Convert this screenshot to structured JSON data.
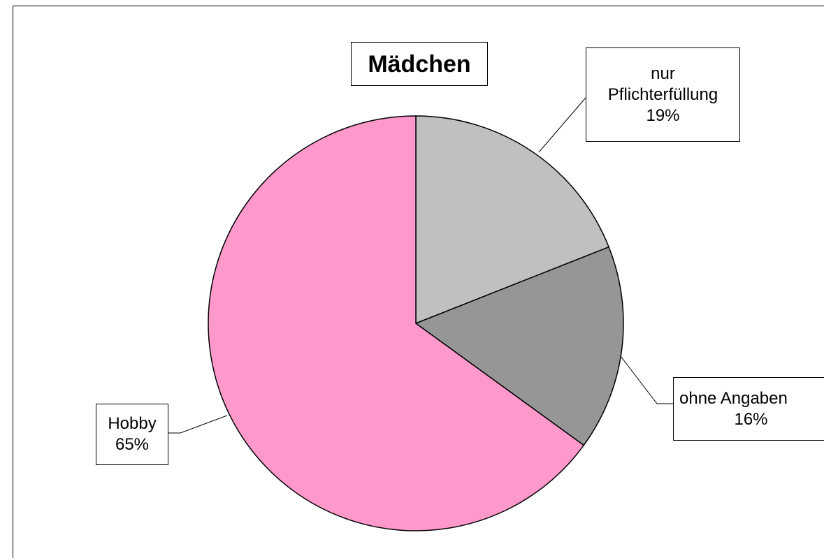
{
  "chart_data": {
    "type": "pie",
    "title": "Mädchen",
    "categories": [
      "nur Pflichterfüllung",
      "ohne Angaben",
      "Hobby"
    ],
    "values": [
      19,
      16,
      65
    ],
    "value_labels": [
      "19%",
      "16%",
      "65%"
    ],
    "colors": [
      "#c0c0c0",
      "#969696",
      "#ff99cc"
    ]
  }
}
